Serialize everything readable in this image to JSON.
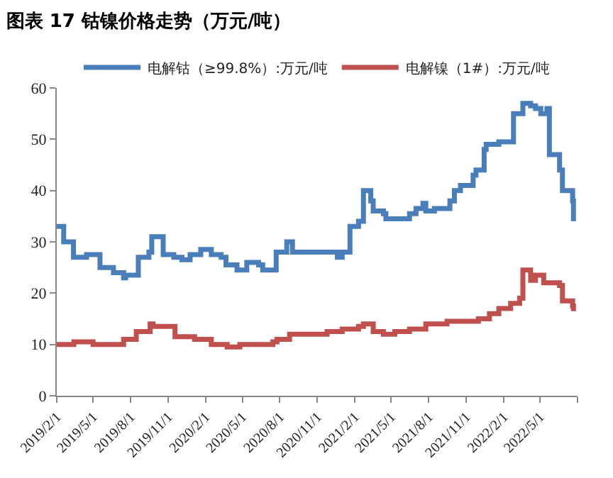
{
  "chart_data": {
    "type": "step",
    "title": "图表 17 钴镍价格走势（万元/吨）",
    "legend": "top",
    "line_style": "solid",
    "marker": "none",
    "xlim": [
      "2019-02-01",
      "2022-08-01"
    ],
    "xticks": [
      {
        "value": "2019-02-01",
        "label": "2019/2/1"
      },
      {
        "value": "2019-05-01",
        "label": "2019/5/1"
      },
      {
        "value": "2019-08-01",
        "label": "2019/8/1"
      },
      {
        "value": "2019-11-01",
        "label": "2019/11/1"
      },
      {
        "value": "2020-02-01",
        "label": "2020/2/1"
      },
      {
        "value": "2020-05-01",
        "label": "2020/5/1"
      },
      {
        "value": "2020-08-01",
        "label": "2020/8/1"
      },
      {
        "value": "2020-11-01",
        "label": "2020/11/1"
      },
      {
        "value": "2021-02-01",
        "label": "2021/2/1"
      },
      {
        "value": "2021-05-01",
        "label": "2021/5/1"
      },
      {
        "value": "2021-08-01",
        "label": "2021/8/1"
      },
      {
        "value": "2021-11-01",
        "label": "2021/11/1"
      },
      {
        "value": "2022-02-01",
        "label": "2022/2/1"
      },
      {
        "value": "2022-05-01",
        "label": "2022/5/1"
      },
      {
        "value": "2022-08-01",
        "label": null
      }
    ],
    "ylim": [
      0,
      60
    ],
    "yticks": [
      0,
      10,
      20,
      30,
      40,
      50,
      60
    ],
    "series": [
      {
        "name": "电解钴（≥99.8%）:万元/吨",
        "color": "#4a7ebb",
        "x": [
          "2019-02-01",
          "2019-02-18",
          "2019-03-14",
          "2019-04-15",
          "2019-05-18",
          "2019-06-20",
          "2019-07-15",
          "2019-07-20",
          "2019-08-20",
          "2019-09-15",
          "2019-09-22",
          "2019-10-20",
          "2019-11-15",
          "2019-12-05",
          "2019-12-25",
          "2020-01-20",
          "2020-02-15",
          "2020-03-10",
          "2020-03-22",
          "2020-04-18",
          "2020-05-12",
          "2020-06-10",
          "2020-06-20",
          "2020-07-23",
          "2020-08-18",
          "2020-09-01",
          "2020-12-20",
          "2021-01-01",
          "2021-01-20",
          "2021-02-10",
          "2021-02-22",
          "2021-03-12",
          "2021-03-18",
          "2021-04-12",
          "2021-04-18",
          "2021-06-15",
          "2021-07-01",
          "2021-07-18",
          "2021-07-25",
          "2021-08-15",
          "2021-09-22",
          "2021-10-03",
          "2021-10-18",
          "2021-11-18",
          "2021-11-25",
          "2021-12-15",
          "2021-12-20",
          "2022-01-20",
          "2022-02-25",
          "2022-03-20",
          "2022-04-08",
          "2022-04-20",
          "2022-05-03",
          "2022-05-18",
          "2022-05-24",
          "2022-06-18",
          "2022-06-25",
          "2022-07-20",
          "2022-07-22"
        ],
        "values": [
          33,
          30,
          27,
          27.5,
          25,
          24,
          23,
          23.5,
          27,
          28,
          31,
          27.5,
          27,
          26.5,
          27.5,
          28.5,
          27.5,
          27,
          25.5,
          24.5,
          26,
          25.5,
          24.5,
          28,
          30,
          28,
          27,
          28,
          33,
          34,
          40,
          38,
          36,
          35.5,
          34.5,
          35.5,
          36.5,
          37.5,
          36,
          36.5,
          38,
          40,
          41,
          43,
          44,
          48,
          49,
          49.5,
          55,
          57,
          56.5,
          56,
          55,
          56,
          47,
          44,
          40,
          38,
          34
        ]
      },
      {
        "name": "电解镍（1#）:万元/吨",
        "color": "#c0504d",
        "x": [
          "2019-02-01",
          "2019-03-15",
          "2019-05-01",
          "2019-07-15",
          "2019-08-15",
          "2019-09-18",
          "2019-09-25",
          "2019-11-18",
          "2020-01-05",
          "2020-02-15",
          "2020-03-25",
          "2020-04-25",
          "2020-07-15",
          "2020-07-25",
          "2020-08-25",
          "2020-11-25",
          "2021-01-01",
          "2021-02-10",
          "2021-02-22",
          "2021-03-18",
          "2021-04-12",
          "2021-05-10",
          "2021-06-15",
          "2021-07-25",
          "2021-09-15",
          "2021-12-01",
          "2021-12-28",
          "2022-01-20",
          "2022-02-18",
          "2022-03-12",
          "2022-03-20",
          "2022-04-08",
          "2022-04-20",
          "2022-05-10",
          "2022-06-18",
          "2022-06-25",
          "2022-07-20",
          "2022-07-22"
        ],
        "values": [
          10,
          10.5,
          10,
          11,
          12.5,
          14,
          13.5,
          11.5,
          11,
          10,
          9.5,
          10,
          10.5,
          11,
          12,
          12.5,
          13,
          13.5,
          14,
          12.5,
          12,
          12.5,
          13,
          14,
          14.5,
          15,
          16,
          17,
          18,
          19,
          24.5,
          22.5,
          23.5,
          22,
          21.5,
          18.5,
          17.5,
          16.5
        ]
      }
    ]
  }
}
